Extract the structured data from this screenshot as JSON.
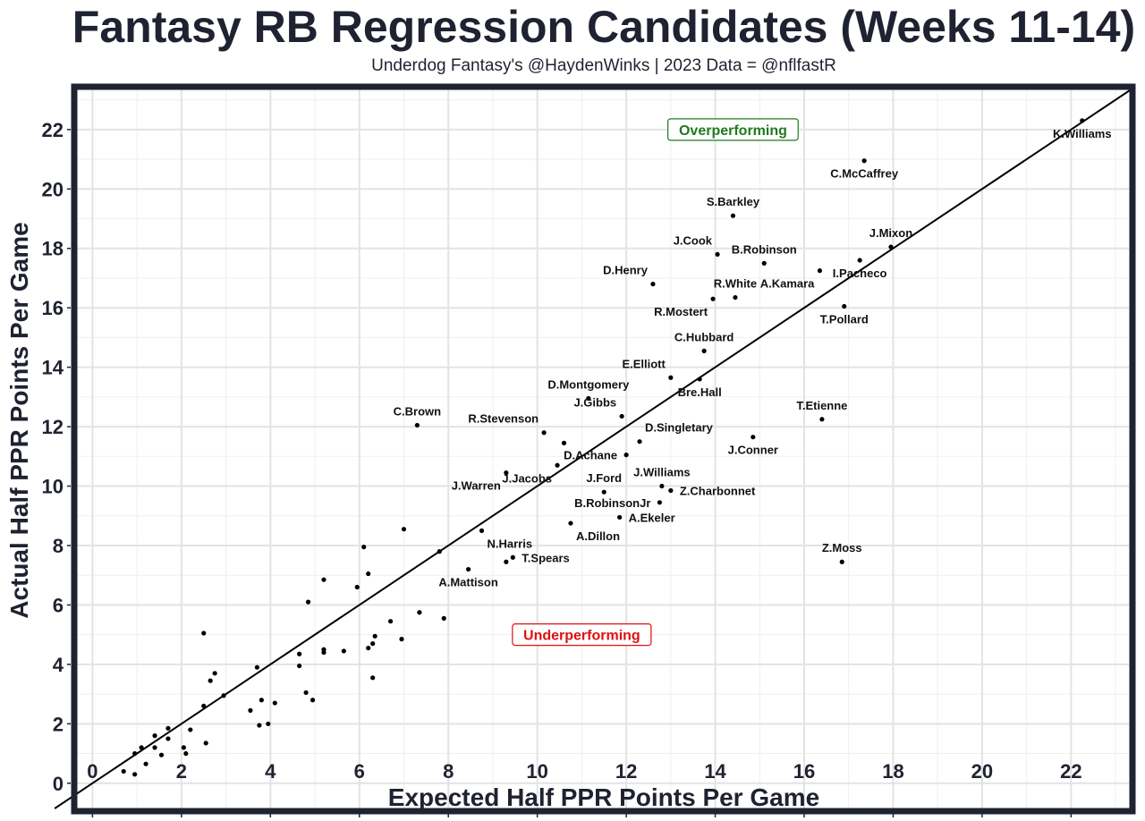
{
  "header": {
    "title": "Fantasy RB Regression Candidates (Weeks 11-14)",
    "subtitle": "Underdog Fantasy's @HaydenWinks | 2023 Data = @nflfastR"
  },
  "chart_data": {
    "type": "scatter",
    "title": "Fantasy RB Regression Candidates (Weeks 11-14)",
    "subtitle": "Underdog Fantasy's @HaydenWinks | 2023 Data = @nflfastR",
    "xlabel": "Expected Half PPR Points Per Game",
    "ylabel": "Actual Half PPR Points Per Game",
    "xlim": [
      -0.35,
      23.3
    ],
    "ylim": [
      -0.85,
      23.35
    ],
    "xticks": [
      0,
      2,
      4,
      6,
      8,
      10,
      12,
      14,
      16,
      18,
      20,
      22
    ],
    "yticks": [
      0,
      2,
      4,
      6,
      8,
      10,
      12,
      14,
      16,
      18,
      20,
      22
    ],
    "grid": true,
    "reference_line": "y = x",
    "annotations": [
      {
        "text": "Overperforming",
        "x": 14.4,
        "y": 22.0,
        "color": "#1e7a1e"
      },
      {
        "text": "Underperforming",
        "x": 11.0,
        "y": 5.0,
        "color": "#e01010"
      }
    ],
    "labeled_points": [
      {
        "label": "K.Williams",
        "x": 22.25,
        "y": 22.3,
        "pos": "below"
      },
      {
        "label": "C.McCaffrey",
        "x": 17.35,
        "y": 20.95,
        "pos": "below"
      },
      {
        "label": "S.Barkley",
        "x": 14.4,
        "y": 19.1,
        "pos": "above"
      },
      {
        "label": "J.Mixon",
        "x": 17.95,
        "y": 18.05,
        "pos": "above"
      },
      {
        "label": "J.Cook",
        "x": 14.05,
        "y": 17.8,
        "pos": "above-left"
      },
      {
        "label": "B.Robinson",
        "x": 15.1,
        "y": 17.5,
        "pos": "above"
      },
      {
        "label": "I.Pacheco",
        "x": 17.25,
        "y": 17.6,
        "pos": "below"
      },
      {
        "label": "A.Kamara",
        "x": 16.35,
        "y": 17.25,
        "pos": "below-left"
      },
      {
        "label": "D.Henry",
        "x": 12.6,
        "y": 16.8,
        "pos": "above-left"
      },
      {
        "label": "R.White",
        "x": 14.45,
        "y": 16.35,
        "pos": "above"
      },
      {
        "label": "R.Mostert",
        "x": 13.95,
        "y": 16.3,
        "pos": "below-left"
      },
      {
        "label": "T.Pollard",
        "x": 16.9,
        "y": 16.05,
        "pos": "below"
      },
      {
        "label": "C.Hubbard",
        "x": 13.75,
        "y": 14.55,
        "pos": "above"
      },
      {
        "label": "E.Elliott",
        "x": 13.0,
        "y": 13.65,
        "pos": "above-left"
      },
      {
        "label": "Bre.Hall",
        "x": 13.65,
        "y": 13.6,
        "pos": "below"
      },
      {
        "label": "D.Montgomery",
        "x": 11.15,
        "y": 12.95,
        "pos": "above"
      },
      {
        "label": "J.Gibbs",
        "x": 11.9,
        "y": 12.35,
        "pos": "above-left"
      },
      {
        "label": "T.Etienne",
        "x": 16.4,
        "y": 12.25,
        "pos": "above"
      },
      {
        "label": "C.Brown",
        "x": 7.3,
        "y": 12.05,
        "pos": "above"
      },
      {
        "label": "R.Stevenson",
        "x": 10.15,
        "y": 11.8,
        "pos": "above-left"
      },
      {
        "label": "D.Singletary",
        "x": 12.3,
        "y": 11.5,
        "pos": "above-right"
      },
      {
        "label": "J.Conner",
        "x": 14.85,
        "y": 11.65,
        "pos": "below"
      },
      {
        "label": "D.Achane",
        "x": 12.0,
        "y": 11.05,
        "pos": "left"
      },
      {
        "label": "J.Jacobs",
        "x": 10.45,
        "y": 10.7,
        "pos": "below-left"
      },
      {
        "label": "J.Warren",
        "x": 9.3,
        "y": 10.45,
        "pos": "below-left"
      },
      {
        "label": "J.Ford",
        "x": 11.5,
        "y": 9.8,
        "pos": "above"
      },
      {
        "label": "J.Williams",
        "x": 12.8,
        "y": 10.0,
        "pos": "above"
      },
      {
        "label": "Z.Charbonnet",
        "x": 13.0,
        "y": 9.85,
        "pos": "right"
      },
      {
        "label": "B.RobinsonJr",
        "x": 12.75,
        "y": 9.45,
        "pos": "left"
      },
      {
        "label": "A.Ekeler",
        "x": 11.85,
        "y": 8.95,
        "pos": "right"
      },
      {
        "label": "A.Dillon",
        "x": 10.75,
        "y": 8.75,
        "pos": "below-right"
      },
      {
        "label": "N.Harris",
        "x": 8.75,
        "y": 8.5,
        "pos": "below-right"
      },
      {
        "label": "Z.Moss",
        "x": 16.85,
        "y": 7.45,
        "pos": "above"
      },
      {
        "label": "T.Spears",
        "x": 9.45,
        "y": 7.6,
        "pos": "right"
      },
      {
        "label": "A.Mattison",
        "x": 8.45,
        "y": 7.2,
        "pos": "below"
      }
    ],
    "points": [
      [
        22.25,
        22.3
      ],
      [
        17.35,
        20.95
      ],
      [
        14.4,
        19.1
      ],
      [
        17.95,
        18.05
      ],
      [
        14.05,
        17.8
      ],
      [
        15.1,
        17.5
      ],
      [
        17.25,
        17.6
      ],
      [
        16.35,
        17.25
      ],
      [
        12.6,
        16.8
      ],
      [
        14.45,
        16.35
      ],
      [
        13.95,
        16.3
      ],
      [
        16.9,
        16.05
      ],
      [
        13.75,
        14.55
      ],
      [
        13.0,
        13.65
      ],
      [
        13.65,
        13.6
      ],
      [
        11.15,
        12.95
      ],
      [
        11.9,
        12.35
      ],
      [
        16.4,
        12.25
      ],
      [
        7.3,
        12.05
      ],
      [
        10.15,
        11.8
      ],
      [
        12.3,
        11.5
      ],
      [
        14.85,
        11.65
      ],
      [
        12.0,
        11.05
      ],
      [
        10.45,
        10.7
      ],
      [
        9.3,
        10.45
      ],
      [
        11.5,
        9.8
      ],
      [
        12.8,
        10.0
      ],
      [
        13.0,
        9.85
      ],
      [
        12.75,
        9.45
      ],
      [
        11.85,
        8.95
      ],
      [
        10.75,
        8.75
      ],
      [
        8.75,
        8.5
      ],
      [
        16.85,
        7.45
      ],
      [
        9.45,
        7.6
      ],
      [
        9.3,
        7.45
      ],
      [
        8.45,
        7.2
      ],
      [
        10.6,
        11.45
      ],
      [
        7.0,
        8.55
      ],
      [
        6.1,
        7.95
      ],
      [
        7.8,
        7.8
      ],
      [
        6.2,
        7.05
      ],
      [
        5.2,
        6.85
      ],
      [
        5.95,
        6.6
      ],
      [
        4.85,
        6.1
      ],
      [
        7.35,
        5.75
      ],
      [
        7.9,
        5.55
      ],
      [
        6.7,
        5.45
      ],
      [
        6.95,
        4.85
      ],
      [
        6.35,
        4.95
      ],
      [
        6.3,
        4.7
      ],
      [
        6.2,
        4.55
      ],
      [
        5.2,
        4.5
      ],
      [
        5.2,
        4.4
      ],
      [
        5.65,
        4.45
      ],
      [
        4.65,
        4.35
      ],
      [
        4.65,
        3.95
      ],
      [
        3.7,
        3.9
      ],
      [
        2.75,
        3.7
      ],
      [
        2.65,
        3.45
      ],
      [
        2.5,
        5.05
      ],
      [
        6.3,
        3.55
      ],
      [
        4.8,
        3.05
      ],
      [
        4.95,
        2.8
      ],
      [
        4.1,
        2.7
      ],
      [
        3.8,
        2.8
      ],
      [
        3.55,
        2.45
      ],
      [
        3.75,
        1.95
      ],
      [
        3.95,
        2.0
      ],
      [
        2.95,
        2.95
      ],
      [
        2.5,
        2.6
      ],
      [
        2.2,
        1.8
      ],
      [
        1.7,
        1.85
      ],
      [
        1.4,
        1.6
      ],
      [
        1.7,
        1.5
      ],
      [
        2.05,
        1.2
      ],
      [
        1.1,
        1.2
      ],
      [
        1.4,
        1.2
      ],
      [
        0.95,
        1.0
      ],
      [
        1.55,
        0.95
      ],
      [
        2.1,
        1.0
      ],
      [
        2.55,
        1.35
      ],
      [
        1.2,
        0.65
      ],
      [
        0.7,
        0.4
      ],
      [
        0.95,
        0.3
      ]
    ]
  }
}
